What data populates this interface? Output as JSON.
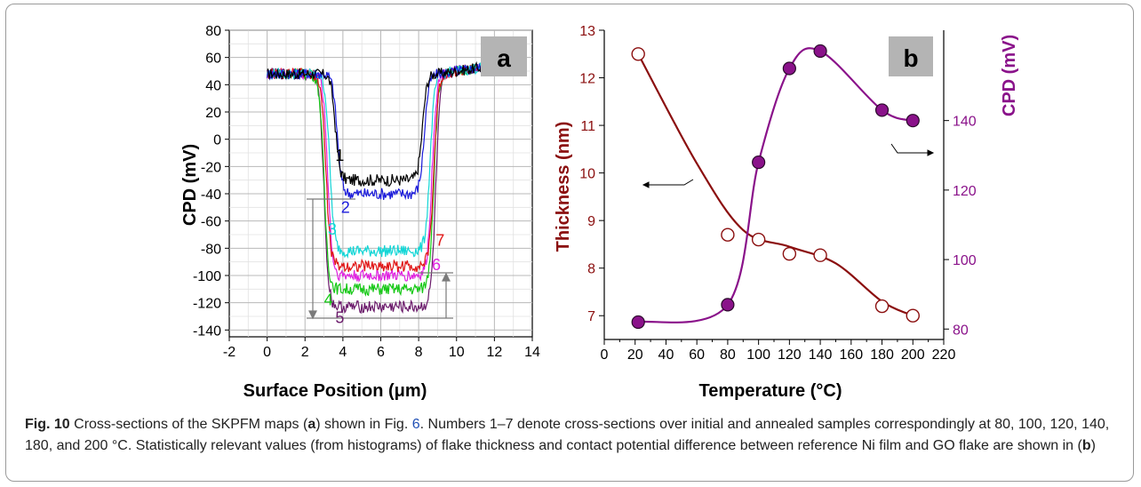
{
  "colors": {
    "curve1": "#000000",
    "curve2": "#1a1adb",
    "curve3": "#12d6d6",
    "curve4": "#15c815",
    "curve5": "#6a1a6a",
    "curve6": "#e020e0",
    "curve7": "#e01515",
    "thickness": "#8b0f0f",
    "cpd": "#8a128a",
    "gray_box": "#b4b4b4"
  },
  "chart_data": [
    {
      "type": "line",
      "panel_label": "a",
      "xlabel": "Surface Position (μm)",
      "ylabel": "CPD (mV)",
      "xlim": [
        -2,
        14
      ],
      "ylim": [
        -145,
        80
      ],
      "xticks": [
        -2,
        0,
        2,
        4,
        6,
        8,
        10,
        12,
        14
      ],
      "yticks": [
        -140,
        -120,
        -100,
        -80,
        -60,
        -40,
        -20,
        0,
        20,
        40,
        60,
        80
      ],
      "grid": true,
      "series": [
        {
          "label": "1",
          "plateau": -30,
          "edge_left": 3.6,
          "edge_right": 8.2
        },
        {
          "label": "2",
          "plateau": -40,
          "edge_left": 3.7,
          "edge_right": 8.3
        },
        {
          "label": "3",
          "plateau": -82,
          "edge_left": 3.3,
          "edge_right": 8.6
        },
        {
          "label": "4",
          "plateau": -110,
          "edge_left": 3.0,
          "edge_right": 8.8
        },
        {
          "label": "5",
          "plateau": -123,
          "edge_left": 3.0,
          "edge_right": 8.9
        },
        {
          "label": "6",
          "plateau": -100,
          "edge_left": 3.2,
          "edge_right": 8.7
        },
        {
          "label": "7",
          "plateau": -93,
          "edge_left": 3.1,
          "edge_right": 8.8
        }
      ],
      "baseline": 48,
      "x_end": 11.5
    },
    {
      "type": "line",
      "panel_label": "b",
      "xlabel": "Temperature (°C)",
      "ylabel_left": "Thickness (nm)",
      "ylabel_right": "CPD (mV)",
      "xlim": [
        0,
        220
      ],
      "ylim_left": [
        6.5,
        13
      ],
      "ylim_right": [
        77,
        166
      ],
      "xticks": [
        0,
        20,
        40,
        60,
        80,
        100,
        120,
        140,
        160,
        180,
        200,
        220
      ],
      "yticks_left": [
        7,
        8,
        9,
        10,
        11,
        12,
        13
      ],
      "yticks_right": [
        80,
        100,
        120,
        140
      ],
      "series": [
        {
          "name": "Thickness",
          "axis": "left",
          "marker": "open-circle",
          "x": [
            22,
            80,
            100,
            120,
            140,
            180,
            200
          ],
          "y": [
            12.5,
            8.7,
            8.6,
            8.3,
            8.27,
            7.2,
            7.0
          ]
        },
        {
          "name": "CPD",
          "axis": "right",
          "marker": "filled-circle",
          "x": [
            22,
            80,
            100,
            120,
            140,
            180,
            200
          ],
          "y": [
            82,
            87,
            128,
            155,
            160,
            143,
            140
          ]
        }
      ]
    }
  ],
  "caption": {
    "fig_label": "Fig. 10",
    "text_1": " Cross-sections of the SKPFM maps (",
    "bold_a": "a",
    "text_2": ") shown in Fig. ",
    "ref": "6",
    "text_3": ". Numbers 1–7 denote cross-sections over initial and annealed samples correspondingly at 80, 100, 120, 140, 180, and 200 °C. Statistically relevant values (from histograms) of flake thickness and contact potential difference between reference Ni film and GO flake are shown in (",
    "bold_b": "b",
    "text_4": ")"
  }
}
